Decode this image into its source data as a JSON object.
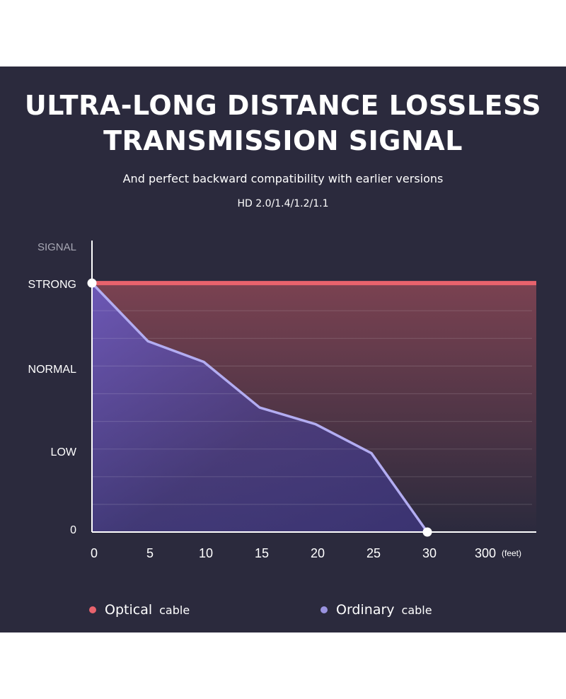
{
  "header": {
    "title_line1": "ULTRA-LONG DISTANCE LOSSLESS",
    "title_line2": "TRANSMISSION SIGNAL",
    "subtitle": "And perfect backward compatibility with earlier versions",
    "versions": "HD 2.0/1.4/1.2/1.1"
  },
  "chart_data": {
    "type": "line",
    "ylabel": "SIGNAL",
    "y_ticks": [
      "STRONG",
      "NORMAL",
      "LOW",
      "0"
    ],
    "x_ticks": [
      "0",
      "5",
      "10",
      "15",
      "20",
      "25",
      "30",
      "300"
    ],
    "x_unit": "(feet)",
    "grid": true,
    "legend_position": "bottom",
    "series": [
      {
        "name": "Optical",
        "suffix": "cable",
        "color": "#e8636d",
        "x": [
          "0",
          "5",
          "10",
          "15",
          "20",
          "25",
          "30",
          "300"
        ],
        "y": [
          3,
          3,
          3,
          3,
          3,
          3,
          3,
          3
        ]
      },
      {
        "name": "Ordinary",
        "suffix": "cable",
        "color": "#9a93e0",
        "x": [
          "0",
          "5",
          "10",
          "15",
          "20",
          "25",
          "30"
        ],
        "y": [
          3,
          2.3,
          2.05,
          1.5,
          1.3,
          0.95,
          0
        ]
      }
    ]
  }
}
